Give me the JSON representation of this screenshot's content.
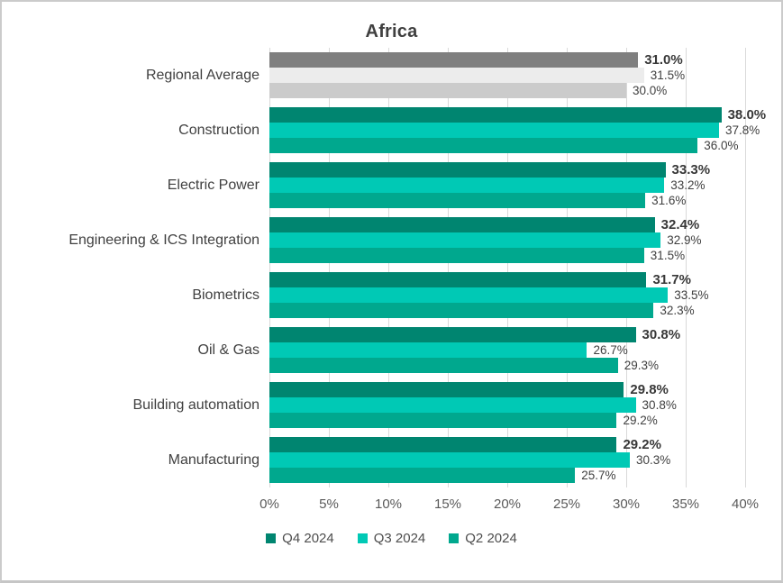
{
  "chart_data": {
    "type": "bar",
    "orientation": "horizontal",
    "title": "Africa",
    "categories": [
      "Regional Average",
      "Construction",
      "Electric Power",
      "Engineering & ICS Integration",
      "Biometrics",
      "Oil & Gas",
      "Building automation",
      "Manufacturing"
    ],
    "series": [
      {
        "name": "Q4 2024",
        "color": "#008570",
        "regional_color": "#7f7f7f",
        "values": [
          31.0,
          38.0,
          33.3,
          32.4,
          31.7,
          30.8,
          29.8,
          29.2
        ],
        "labels": [
          "31.0%",
          "38.0%",
          "33.3%",
          "32.4%",
          "31.7%",
          "30.8%",
          "29.8%",
          "29.2%"
        ]
      },
      {
        "name": "Q3 2024",
        "color": "#00c9b5",
        "regional_color": "#ececec",
        "values": [
          31.5,
          37.8,
          33.2,
          32.9,
          33.5,
          26.7,
          30.8,
          30.3
        ],
        "labels": [
          "31.5%",
          "37.8%",
          "33.2%",
          "32.9%",
          "33.5%",
          "26.7%",
          "30.8%",
          "30.3%"
        ]
      },
      {
        "name": "Q2 2024",
        "color": "#00a88e",
        "regional_color": "#cbcbcb",
        "values": [
          30.0,
          36.0,
          31.6,
          31.5,
          32.3,
          29.3,
          29.2,
          25.7
        ],
        "labels": [
          "30.0%",
          "36.0%",
          "31.6%",
          "31.5%",
          "32.3%",
          "29.3%",
          "29.2%",
          "25.7%"
        ]
      }
    ],
    "xlim": [
      0,
      40
    ],
    "x_ticks": [
      "0%",
      "5%",
      "10%",
      "15%",
      "20%",
      "25%",
      "30%",
      "35%",
      "40%"
    ],
    "grid": true,
    "legend_position": "bottom",
    "colors": {
      "gridline": "#d9d9d9",
      "title_text": "#404040",
      "category_text": "#404040",
      "axis_text": "#595959",
      "value_text": "#404040",
      "frame_border": "#cbcbcb",
      "background": "#ffffff"
    }
  }
}
